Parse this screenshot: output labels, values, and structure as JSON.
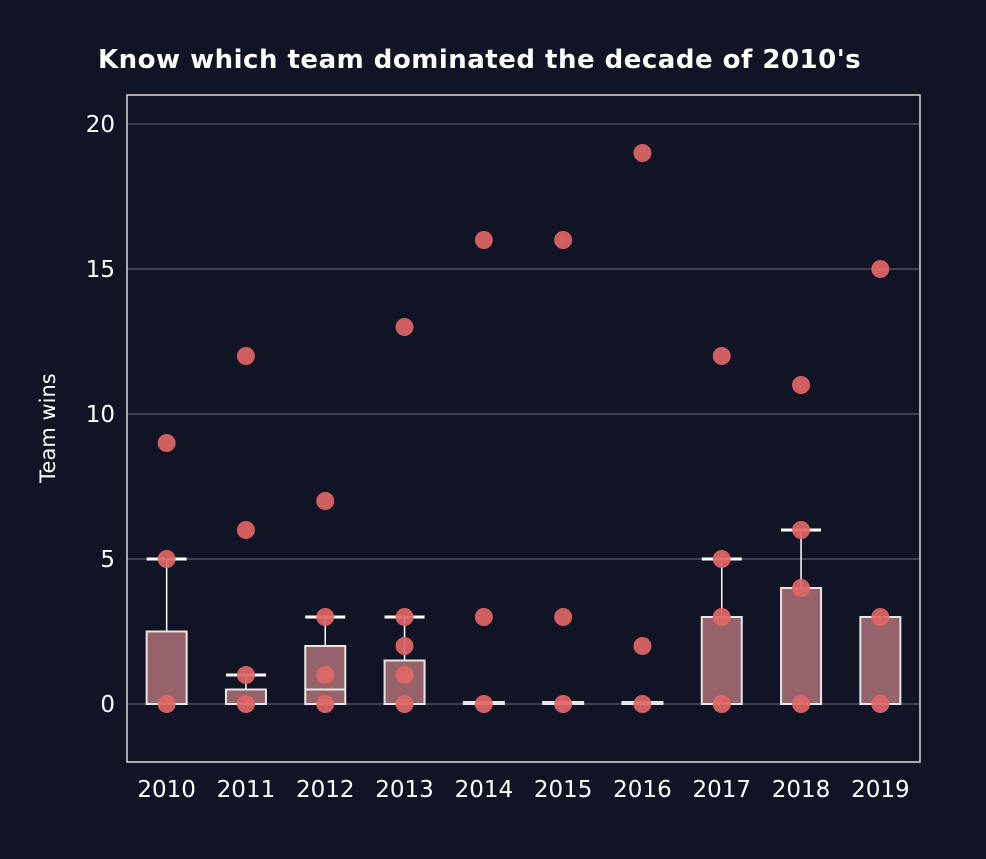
{
  "colors": {
    "background": "#111425",
    "grid": "#4a4e63",
    "frame": "#d9d9d9",
    "point": "#e06666",
    "box_fill": "#a36a70",
    "box_edge": "#e6e6e6",
    "whisker": "#ffffff",
    "text": "#ffffff"
  },
  "chart_data": {
    "type": "box",
    "title": "Know which team dominated the decade of 2010's",
    "xlabel": "",
    "ylabel": "Team wins",
    "ylim": [
      -2,
      21
    ],
    "yticks": [
      0,
      5,
      10,
      15,
      20
    ],
    "grid": true,
    "categories": [
      "2010",
      "2011",
      "2012",
      "2013",
      "2014",
      "2015",
      "2016",
      "2017",
      "2018",
      "2019"
    ],
    "boxes": [
      {
        "year": "2010",
        "q1": 0,
        "median": 0,
        "q3": 2.5,
        "whisker_low": 0,
        "whisker_high": 5
      },
      {
        "year": "2011",
        "q1": 0,
        "median": 0.5,
        "q3": 0.5,
        "whisker_low": 0,
        "whisker_high": 1
      },
      {
        "year": "2012",
        "q1": 0,
        "median": 0.5,
        "q3": 2,
        "whisker_low": 0,
        "whisker_high": 3
      },
      {
        "year": "2013",
        "q1": 0,
        "median": 0,
        "q3": 1.5,
        "whisker_low": 0,
        "whisker_high": 3
      },
      {
        "year": "2014",
        "q1": 0,
        "median": 0,
        "q3": 0,
        "whisker_low": 0,
        "whisker_high": 0
      },
      {
        "year": "2015",
        "q1": 0,
        "median": 0,
        "q3": 0,
        "whisker_low": 0,
        "whisker_high": 0
      },
      {
        "year": "2016",
        "q1": 0,
        "median": 0,
        "q3": 0,
        "whisker_low": 0,
        "whisker_high": 0
      },
      {
        "year": "2017",
        "q1": 0,
        "median": 0,
        "q3": 3,
        "whisker_low": 0,
        "whisker_high": 5
      },
      {
        "year": "2018",
        "q1": 0,
        "median": 0,
        "q3": 4,
        "whisker_low": 0,
        "whisker_high": 6
      },
      {
        "year": "2019",
        "q1": 0,
        "median": 0,
        "q3": 3,
        "whisker_low": 0,
        "whisker_high": 3
      }
    ],
    "points": [
      {
        "year": "2010",
        "values": [
          9,
          5,
          0
        ]
      },
      {
        "year": "2011",
        "values": [
          12,
          6,
          1,
          0
        ]
      },
      {
        "year": "2012",
        "values": [
          7,
          3,
          1,
          0
        ]
      },
      {
        "year": "2013",
        "values": [
          13,
          3,
          2,
          1,
          0
        ]
      },
      {
        "year": "2014",
        "values": [
          16,
          3,
          0
        ]
      },
      {
        "year": "2015",
        "values": [
          16,
          3,
          0
        ]
      },
      {
        "year": "2016",
        "values": [
          19,
          2,
          0
        ]
      },
      {
        "year": "2017",
        "values": [
          12,
          5,
          3,
          0
        ]
      },
      {
        "year": "2018",
        "values": [
          11,
          6,
          4,
          0
        ]
      },
      {
        "year": "2019",
        "values": [
          15,
          3,
          0
        ]
      }
    ]
  }
}
